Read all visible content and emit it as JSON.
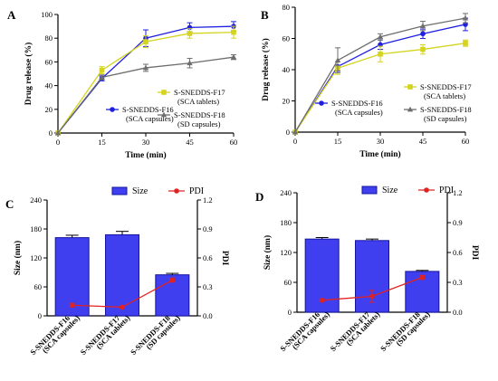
{
  "colors": {
    "blue": "#1f1fe0",
    "yellow": "#d4d41e",
    "gray": "#6e6e6e",
    "bar_fill": "#3f3ff0",
    "bar_edge": "#1414a0",
    "red": "#e02222"
  },
  "chart_data": [
    {
      "panel": "A",
      "type": "line",
      "xlabel": "Time (min)",
      "ylabel": "Drug release (%)",
      "xlim": [
        0,
        60
      ],
      "ylim": [
        0,
        100
      ],
      "xticks": [
        0,
        15,
        30,
        45,
        60
      ],
      "yticks": [
        0,
        20,
        40,
        60,
        80,
        100
      ],
      "x": [
        0,
        15,
        30,
        45,
        60
      ],
      "series": [
        {
          "name": "S-SNEDDS-F16",
          "name2": "(SCA capsules)",
          "color_key": "blue",
          "marker": "circle",
          "values": [
            0,
            46,
            80,
            89,
            90
          ],
          "errors": [
            0,
            2,
            7,
            4,
            4
          ]
        },
        {
          "name": "S-SNEDDS-F17",
          "name2": "(SCA tablets)",
          "color_key": "yellow",
          "marker": "square",
          "values": [
            0,
            53,
            77,
            84,
            85
          ],
          "errors": [
            0,
            3,
            5,
            4,
            5
          ]
        },
        {
          "name": "S-SNEDDS-F18",
          "name2": "(SD capsules)",
          "color_key": "gray",
          "marker": "triangle",
          "values": [
            0,
            47,
            55,
            59,
            64
          ],
          "errors": [
            0,
            2,
            3,
            4,
            2
          ]
        }
      ]
    },
    {
      "panel": "B",
      "type": "line",
      "xlabel": "Time (min)",
      "ylabel": "Drug release (%)",
      "xlim": [
        0,
        60
      ],
      "ylim": [
        0,
        80
      ],
      "xticks": [
        0,
        15,
        30,
        45,
        60
      ],
      "yticks": [
        0,
        20,
        40,
        60,
        80
      ],
      "x": [
        0,
        15,
        30,
        45,
        60
      ],
      "series": [
        {
          "name": "S-SNEDDS-F16",
          "name2": "(SCA capsules)",
          "color_key": "blue",
          "marker": "circle",
          "values": [
            0,
            42,
            56,
            63,
            69
          ],
          "errors": [
            0,
            3,
            3,
            3,
            4
          ]
        },
        {
          "name": "S-SNEDDS-F17",
          "name2": "(SCA tablets)",
          "color_key": "yellow",
          "marker": "square",
          "values": [
            0,
            41,
            50,
            53,
            57
          ],
          "errors": [
            0,
            4,
            5,
            3,
            2
          ]
        },
        {
          "name": "S-SNEDDS-F18",
          "name2": "(SD capsules)",
          "color_key": "gray",
          "marker": "triangle",
          "values": [
            0,
            46,
            61,
            68,
            73
          ],
          "errors": [
            0,
            8,
            2,
            3,
            3
          ]
        }
      ]
    },
    {
      "panel": "C",
      "type": "bar",
      "ylabel": "Size (nm)",
      "y2label": "PDI",
      "ylim": [
        0,
        240
      ],
      "y2lim": [
        0,
        1.2
      ],
      "yticks": [
        0,
        60,
        120,
        180,
        240
      ],
      "y2ticks": [
        "0.0",
        "0.3",
        "0.6",
        "0.9",
        "1.2"
      ],
      "categories": [
        [
          "S-SNEDDS-F16",
          "(SCA capsules)"
        ],
        [
          "S-SNEDDS-F17",
          "(SCA tablets)"
        ],
        [
          "S-SNEDDS-F18",
          "(SD capsules)"
        ]
      ],
      "series": [
        {
          "name": "Size",
          "values": [
            162,
            168,
            85
          ],
          "errors": [
            5,
            7,
            3
          ]
        },
        {
          "name": "PDI",
          "axis": "right",
          "values": [
            0.11,
            0.09,
            0.37
          ],
          "errors": [
            0.02,
            0.01,
            0.02
          ]
        }
      ],
      "legend": "top"
    },
    {
      "panel": "D",
      "type": "bar",
      "ylabel": "Size (nm)",
      "y2label": "PDI",
      "ylim": [
        0,
        240
      ],
      "y2lim": [
        0,
        1.2
      ],
      "yticks": [
        0,
        60,
        120,
        180,
        240
      ],
      "y2ticks": [
        "0.0",
        "0.3",
        "0.6",
        "0.9",
        "1.2"
      ],
      "categories": [
        [
          "S-SNEDDS-F16",
          "(SCA capsules)"
        ],
        [
          "S-SNEDDS-F17",
          "(SCA tablets)"
        ],
        [
          "S-SNEDDS-F18",
          "(SD capsules)"
        ]
      ],
      "series": [
        {
          "name": "Size",
          "values": [
            147,
            144,
            82
          ],
          "errors": [
            3,
            3,
            2
          ]
        },
        {
          "name": "PDI",
          "axis": "right",
          "values": [
            0.12,
            0.16,
            0.35
          ],
          "errors": [
            0.01,
            0.06,
            0.02
          ]
        }
      ],
      "legend": "top"
    }
  ]
}
